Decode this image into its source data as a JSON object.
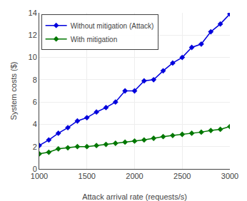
{
  "chart_data": {
    "type": "line",
    "xlabel": "Attack arrival rate (requests/s)",
    "ylabel": "System costs ($)",
    "x": [
      1000,
      1100,
      1200,
      1300,
      1400,
      1500,
      1600,
      1700,
      1800,
      1900,
      2000,
      2100,
      2200,
      2300,
      2400,
      2500,
      2600,
      2700,
      2800,
      2900,
      3000
    ],
    "series": [
      {
        "name": "Without mitigation (Attack)",
        "color": "#0000dd",
        "marker": "diamond",
        "values": [
          2.1,
          2.6,
          3.2,
          3.7,
          4.3,
          4.6,
          5.1,
          5.5,
          6.0,
          7.0,
          7.0,
          7.9,
          8.0,
          8.8,
          9.5,
          10.0,
          10.9,
          11.2,
          12.3,
          13.0,
          13.9
        ]
      },
      {
        "name": "With mitigation",
        "color": "#007700",
        "marker": "diamond",
        "values": [
          1.35,
          1.5,
          1.8,
          1.9,
          2.0,
          2.0,
          2.1,
          2.2,
          2.3,
          2.4,
          2.5,
          2.6,
          2.75,
          2.9,
          3.0,
          3.1,
          3.2,
          3.3,
          3.45,
          3.55,
          3.8
        ]
      }
    ],
    "xlim": [
      1000,
      3000
    ],
    "ylim": [
      0,
      14
    ],
    "xticks": [
      1000,
      1500,
      2000,
      2500,
      3000
    ],
    "yticks": [
      0,
      2,
      4,
      6,
      8,
      10,
      12,
      14
    ],
    "grid": true,
    "legend": "upper left"
  }
}
